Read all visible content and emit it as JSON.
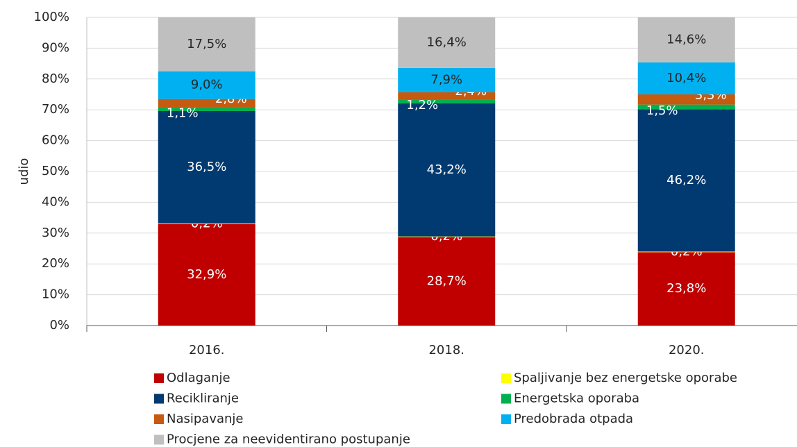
{
  "chart_data": {
    "type": "stacked_bar",
    "y_label": "udio",
    "categories": [
      "2016.",
      "2018.",
      "2020."
    ],
    "ylim": [
      0,
      100
    ],
    "yticks": [
      {
        "value": 0,
        "label": "0%"
      },
      {
        "value": 10,
        "label": "10%"
      },
      {
        "value": 20,
        "label": "20%"
      },
      {
        "value": 30,
        "label": "30%"
      },
      {
        "value": 40,
        "label": "40%"
      },
      {
        "value": 50,
        "label": "50%"
      },
      {
        "value": 60,
        "label": "60%"
      },
      {
        "value": 70,
        "label": "70%"
      },
      {
        "value": 80,
        "label": "80%"
      },
      {
        "value": 90,
        "label": "90%"
      },
      {
        "value": 100,
        "label": "100%"
      }
    ],
    "grid": true,
    "series": [
      {
        "name": "Odlaganje",
        "color": "#c00000",
        "values": [
          32.9,
          28.7,
          23.8
        ],
        "value_labels": [
          "32,9%",
          "28,7%",
          "23,8%"
        ]
      },
      {
        "name": "Spaljivanje bez energetske oporabe",
        "color": "#ffff00",
        "values": [
          0.2,
          0.2,
          0.2
        ],
        "value_labels": [
          "0,2%",
          "0,2%",
          "0,2%"
        ]
      },
      {
        "name": "Recikliranje",
        "color": "#003a70",
        "values": [
          36.5,
          43.2,
          46.2
        ],
        "value_labels": [
          "36,5%",
          "43,2%",
          "46,2%"
        ]
      },
      {
        "name": "Energetska oporaba",
        "color": "#00b050",
        "values": [
          1.1,
          1.2,
          1.5
        ],
        "value_labels": [
          "1,1%",
          "1,2%",
          "1,5%"
        ]
      },
      {
        "name": "Nasipavanje",
        "color": "#c55a11",
        "values": [
          2.8,
          2.4,
          3.3
        ],
        "value_labels": [
          "2,8%",
          "2,4%",
          "3,3%"
        ]
      },
      {
        "name": "Predobrada otpada",
        "color": "#00b0f0",
        "values": [
          9.0,
          7.9,
          10.4
        ],
        "value_labels": [
          "9,0%",
          "7,9%",
          "10,4%"
        ]
      },
      {
        "name": "Procjene za neevidentirano postupanje",
        "color": "#bfbfbf",
        "values": [
          17.5,
          16.4,
          14.6
        ],
        "value_labels": [
          "17,5%",
          "16,4%",
          "14,6%"
        ]
      }
    ]
  }
}
